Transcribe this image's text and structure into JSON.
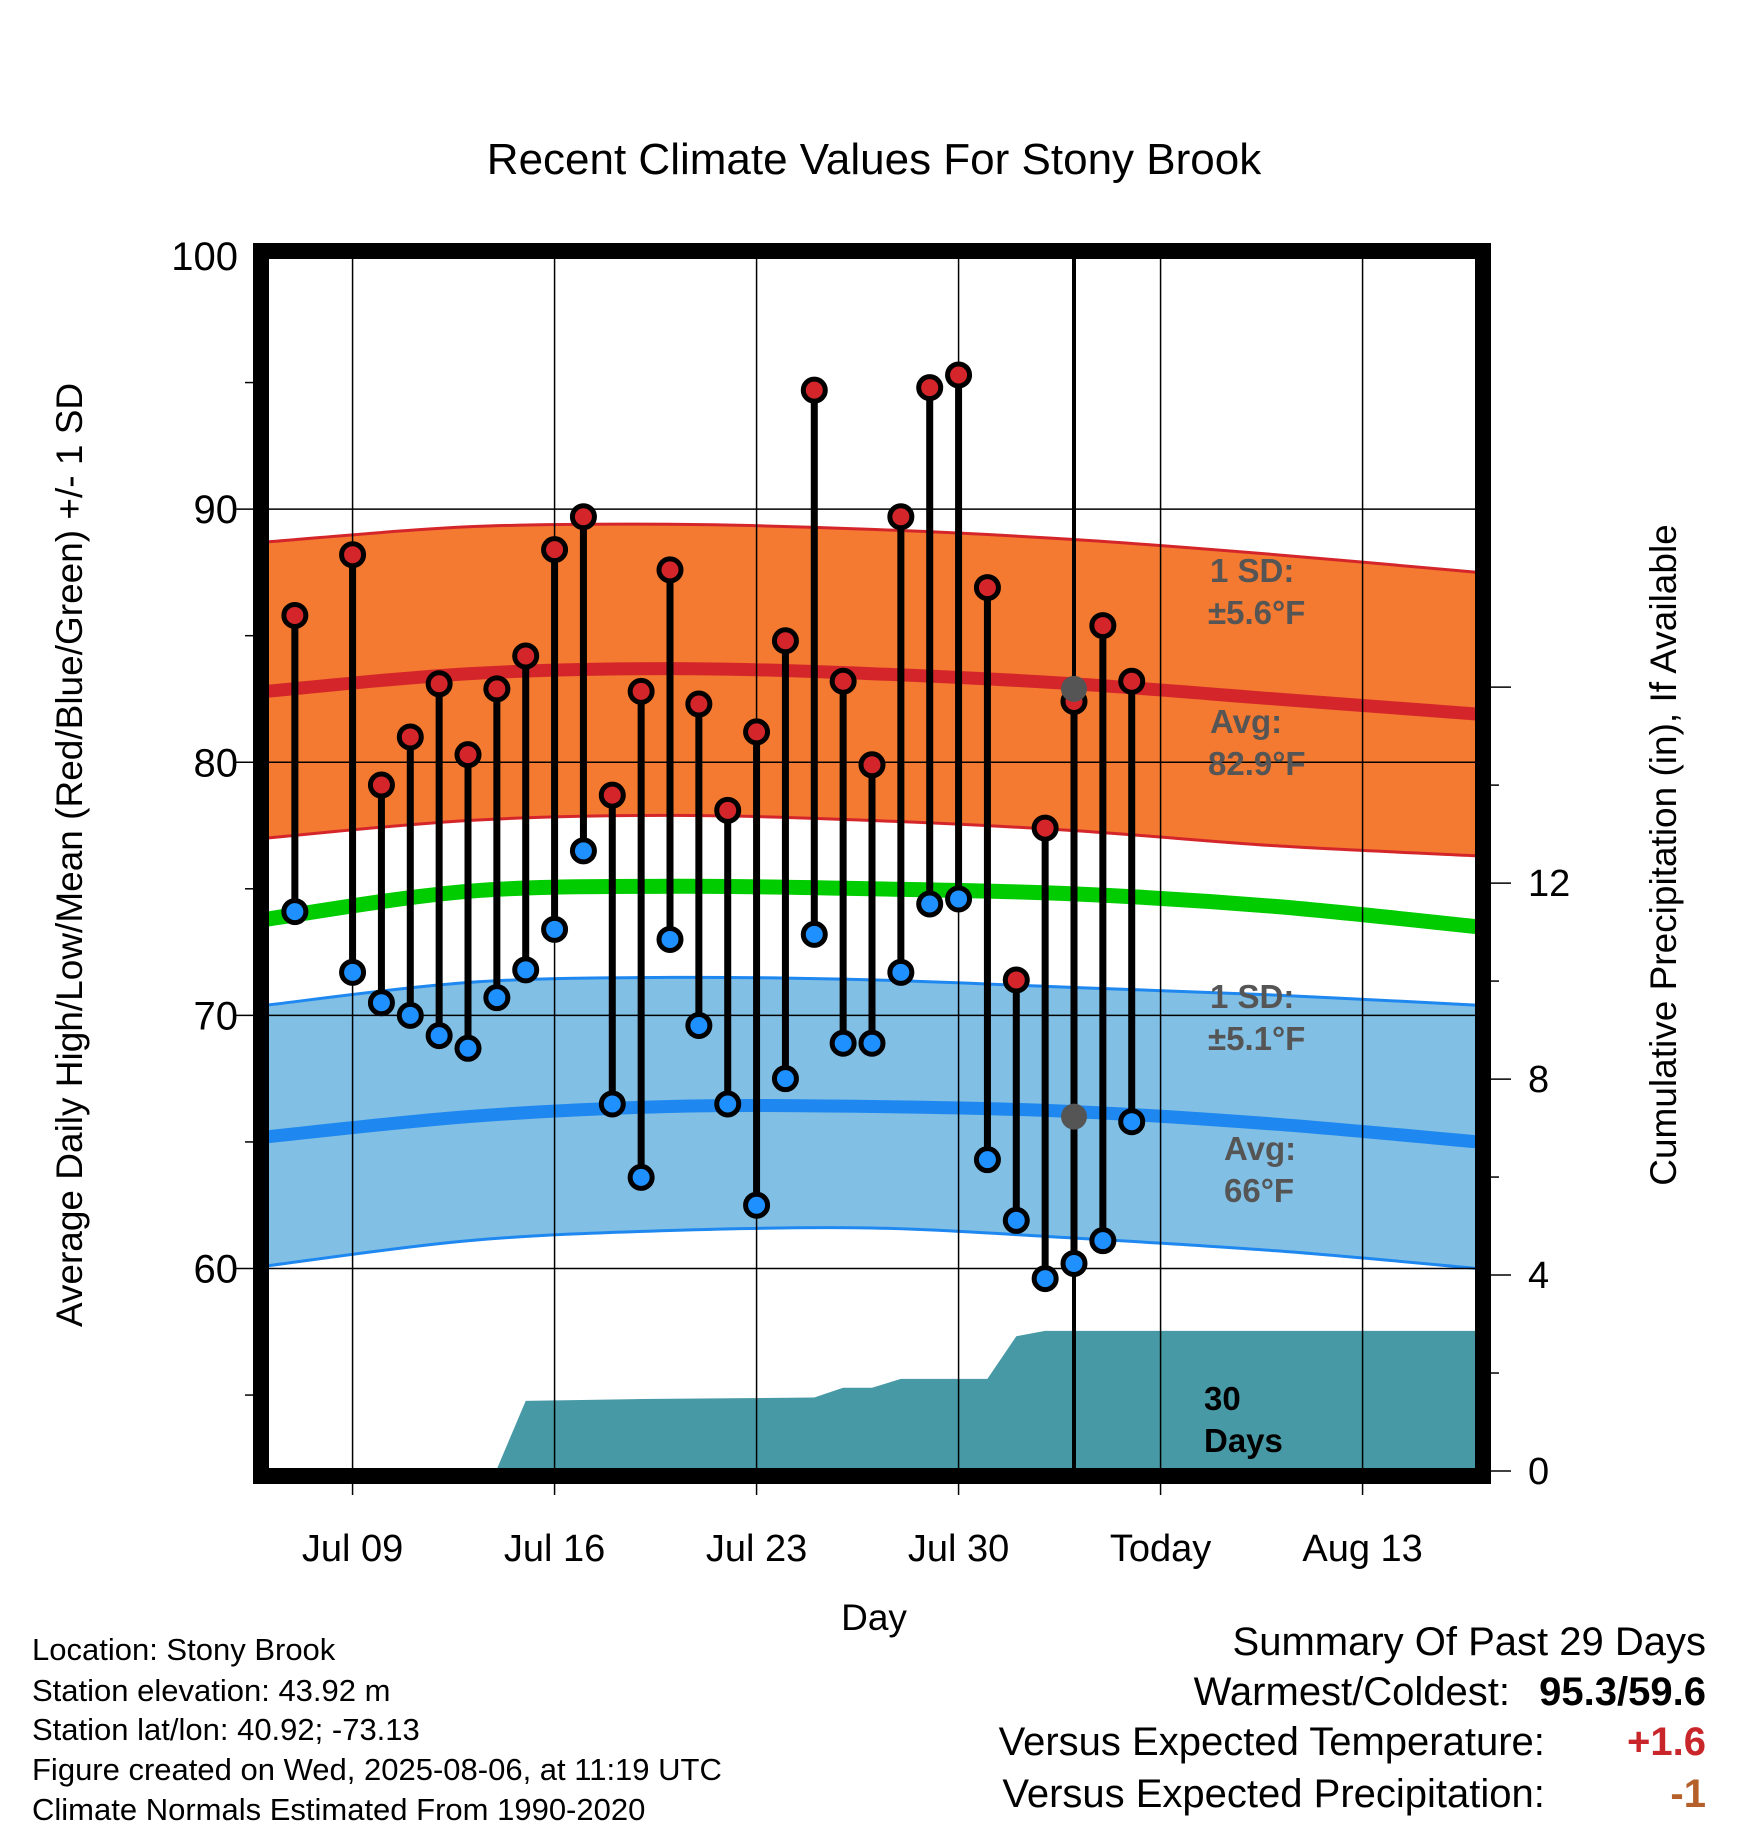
{
  "colors": {
    "high_band": "#f37a30",
    "high_band_edge": "#d4262a",
    "high_avg_line": "#d4262a",
    "low_band": "#82bfe4",
    "low_band_edge": "#1e88f0",
    "low_avg_line": "#1e88f0",
    "mean_line": "#00cc00",
    "precip_fill": "#4799a6",
    "high_marker": "#d4262a",
    "low_marker": "#1e90ff",
    "today_marker": "#555555",
    "annotation": "#555555",
    "positive_value": "#c8262a",
    "precip_value": "#b5602a"
  },
  "chart_data": {
    "type": "line",
    "title": "Recent Climate Values For Stony Brook",
    "xlabel": "Day",
    "ylabel": "Average Daily High/Low/Mean (Red/Blue/Green) +/- 1 SD",
    "y2label": "Cumulative Precipitation (in), If Available",
    "x_tick_labels": [
      "Jul 09",
      "Jul 16",
      "Jul 23",
      "Jul 30",
      "Today",
      "Aug 13"
    ],
    "y_tick_labels": [
      "100",
      "90",
      "80",
      "70",
      "60"
    ],
    "y2_tick_labels": [
      "12",
      "8",
      "4",
      "0"
    ],
    "ylim": [
      52,
      100
    ],
    "y2lim": [
      0,
      24.8
    ],
    "xlim": [
      "2025-07-05",
      "2025-08-16"
    ],
    "grid": true,
    "days": [
      "2025-07-06",
      "2025-07-08",
      "2025-07-09",
      "2025-07-10",
      "2025-07-11",
      "2025-07-12",
      "2025-07-13",
      "2025-07-14",
      "2025-07-15",
      "2025-07-16",
      "2025-07-17",
      "2025-07-18",
      "2025-07-19",
      "2025-07-20",
      "2025-07-21",
      "2025-07-22",
      "2025-07-23",
      "2025-07-24",
      "2025-07-25",
      "2025-07-26",
      "2025-07-27",
      "2025-07-28",
      "2025-07-29",
      "2025-07-30",
      "2025-07-31",
      "2025-08-01",
      "2025-08-02",
      "2025-08-03",
      "2025-08-04",
      "2025-08-05"
    ],
    "series": [
      {
        "name": "High",
        "values": [
          85.8,
          88.2,
          79.1,
          81.0,
          83.1,
          80.3,
          82.9,
          84.2,
          88.4,
          89.7,
          78.7,
          82.8,
          87.6,
          82.3,
          78.1,
          81.2,
          84.8,
          94.7,
          83.2,
          79.9,
          89.7,
          94.8,
          95.3,
          86.9,
          71.4,
          77.4,
          82.4,
          85.4,
          83.2,
          null
        ]
      },
      {
        "name": "Low",
        "values": [
          74.1,
          71.7,
          70.5,
          70.0,
          69.2,
          68.7,
          70.7,
          71.8,
          73.4,
          76.5,
          66.5,
          63.6,
          73.0,
          69.6,
          66.5,
          62.5,
          67.5,
          73.2,
          68.9,
          68.9,
          71.7,
          74.4,
          74.6,
          64.3,
          61.9,
          59.6,
          60.2,
          61.1,
          65.8,
          null
        ]
      }
    ],
    "normals": {
      "x": [
        "2025-07-05",
        "2025-07-12",
        "2025-07-19",
        "2025-07-26",
        "2025-08-02",
        "2025-08-09",
        "2025-08-16"
      ],
      "high_avg": [
        82.8,
        83.5,
        83.7,
        83.5,
        83.1,
        82.5,
        81.9
      ],
      "high_plus_sd": [
        88.7,
        89.3,
        89.4,
        89.2,
        88.8,
        88.2,
        87.5
      ],
      "high_minus_sd": [
        77.0,
        77.7,
        77.9,
        77.7,
        77.3,
        76.7,
        76.3
      ],
      "mean_avg": [
        73.8,
        74.9,
        75.1,
        75.0,
        74.8,
        74.3,
        73.5
      ],
      "low_avg": [
        65.2,
        66.0,
        66.4,
        66.4,
        66.2,
        65.7,
        65.0
      ],
      "low_plus_sd": [
        70.4,
        71.3,
        71.5,
        71.4,
        71.1,
        70.8,
        70.4
      ],
      "low_minus_sd": [
        60.1,
        61.1,
        61.5,
        61.6,
        61.2,
        60.7,
        60.0
      ]
    },
    "precip_cumulative": {
      "x": [
        "2025-07-05",
        "2025-07-08",
        "2025-07-09",
        "2025-07-12",
        "2025-07-13",
        "2025-07-14",
        "2025-07-18",
        "2025-07-24",
        "2025-07-25",
        "2025-07-26",
        "2025-07-27",
        "2025-07-28",
        "2025-07-29",
        "2025-07-30",
        "2025-07-31",
        "2025-08-01",
        "2025-08-16"
      ],
      "values": [
        0.0,
        0.0,
        0.02,
        0.02,
        0.04,
        1.43,
        1.47,
        1.5,
        1.7,
        1.7,
        1.88,
        1.88,
        1.88,
        1.88,
        2.75,
        2.86,
        2.86
      ]
    },
    "today": {
      "date": "2025-08-02",
      "high_avg": 82.9,
      "low_avg": 66.0
    },
    "annotations": {
      "high_sd_label": "1 SD:",
      "high_sd_value": "±5.6°F",
      "high_avg_label": "Avg:",
      "high_avg_value": "82.9°F",
      "low_sd_label": "1 SD:",
      "low_sd_value": "±5.1°F",
      "low_avg_label": "Avg:",
      "low_avg_value": "66°F",
      "window_count": "30",
      "window_unit": "Days"
    }
  },
  "station": {
    "location": "Location: Stony Brook",
    "elevation": "Station elevation: 43.92 m",
    "latlon": "Station lat/lon: 40.92; -73.13",
    "created": "Figure created on Wed, 2025-08-06, at 11:19 UTC",
    "normals": "Climate Normals Estimated From 1990-2020"
  },
  "summary": {
    "title": "Summary Of Past 29 Days",
    "warm_cold_label": "Warmest/Coldest:",
    "warmest": "95.3",
    "coldest": "59.6",
    "temp_label": "Versus Expected Temperature:",
    "temp_value": "+1.6",
    "precip_label": "Versus Expected Precipitation:",
    "precip_value": "-1"
  }
}
